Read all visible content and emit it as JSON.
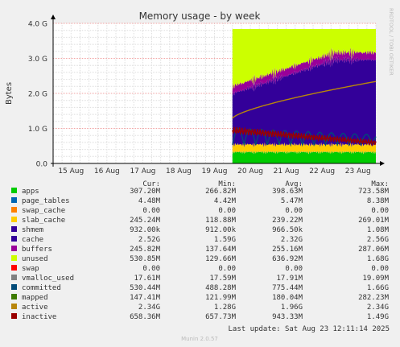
{
  "chart_data": {
    "type": "area",
    "title": "Memory usage - by week",
    "ylabel": "Bytes",
    "watermark": "RRDTOOL / TOBI OETIKER",
    "footer": "Munin 2.0.57",
    "ylim": [
      0,
      4000000000
    ],
    "yticks": [
      {
        "value": 0,
        "label": "0.0"
      },
      {
        "value": 1000000000,
        "label": "1.0 G"
      },
      {
        "value": 2000000000,
        "label": "2.0 G"
      },
      {
        "value": 3000000000,
        "label": "3.0 G"
      },
      {
        "value": 4000000000,
        "label": "4.0 G"
      }
    ],
    "xlim": [
      "2025-08-14T12:00",
      "2025-08-23T12:00"
    ],
    "xticks": [
      "15 Aug",
      "16 Aug",
      "17 Aug",
      "18 Aug",
      "19 Aug",
      "20 Aug",
      "21 Aug",
      "22 Aug",
      "23 Aug"
    ],
    "data_start": "2025-08-19T12:00",
    "columns": [
      "Cur:",
      "Min:",
      "Avg:",
      "Max:"
    ],
    "stacked_series": [
      {
        "name": "apps",
        "color": "#00cc00",
        "cur": 307200000
      },
      {
        "name": "page_tables",
        "color": "#0066b3",
        "cur": 4480000
      },
      {
        "name": "swap_cache",
        "color": "#ff8000",
        "cur": 0
      },
      {
        "name": "slab_cache",
        "color": "#ffcc00",
        "cur": 245240000
      },
      {
        "name": "cache",
        "color": "#330099",
        "cur": 2520000000
      },
      {
        "name": "buffers",
        "color": "#990099",
        "cur": 245820000
      },
      {
        "name": "unused",
        "color": "#ccff00",
        "cur": 530850000
      }
    ],
    "line_series": [
      {
        "name": "committed",
        "color": "#024b78",
        "cur": 530440000
      },
      {
        "name": "active",
        "color": "#b8860b",
        "cur": 2340000000
      },
      {
        "name": "inactive",
        "color": "#990000",
        "cur": 658360000
      }
    ],
    "legend": [
      {
        "name": "apps",
        "color": "#00cc00",
        "cur": "307.20M",
        "min": "266.82M",
        "avg": "398.63M",
        "max": "723.58M"
      },
      {
        "name": "page_tables",
        "color": "#0066b3",
        "cur": "4.48M",
        "min": "4.42M",
        "avg": "5.47M",
        "max": "8.38M"
      },
      {
        "name": "swap_cache",
        "color": "#ff8000",
        "cur": "0.00",
        "min": "0.00",
        "avg": "0.00",
        "max": "0.00"
      },
      {
        "name": "slab_cache",
        "color": "#ffcc00",
        "cur": "245.24M",
        "min": "118.88M",
        "avg": "239.22M",
        "max": "269.01M"
      },
      {
        "name": "shmem",
        "color": "#330099",
        "cur": "932.00k",
        "min": "912.00k",
        "avg": "966.50k",
        "max": "1.08M"
      },
      {
        "name": "cache",
        "color": "#330099",
        "cur": "2.52G",
        "min": "1.59G",
        "avg": "2.32G",
        "max": "2.56G"
      },
      {
        "name": "buffers",
        "color": "#990099",
        "cur": "245.82M",
        "min": "137.64M",
        "avg": "255.16M",
        "max": "287.06M"
      },
      {
        "name": "unused",
        "color": "#ccff00",
        "cur": "530.85M",
        "min": "129.66M",
        "avg": "636.92M",
        "max": "1.68G"
      },
      {
        "name": "swap",
        "color": "#ff0000",
        "cur": "0.00",
        "min": "0.00",
        "avg": "0.00",
        "max": "0.00"
      },
      {
        "name": "vmalloc_used",
        "color": "#808080",
        "cur": "17.61M",
        "min": "17.59M",
        "avg": "17.91M",
        "max": "19.09M"
      },
      {
        "name": "committed",
        "color": "#024b78",
        "cur": "530.44M",
        "min": "488.28M",
        "avg": "775.44M",
        "max": "1.66G"
      },
      {
        "name": "mapped",
        "color": "#3d7a00",
        "cur": "147.41M",
        "min": "121.99M",
        "avg": "180.04M",
        "max": "282.23M"
      },
      {
        "name": "active",
        "color": "#b8860b",
        "cur": "2.34G",
        "min": "1.28G",
        "avg": "1.96G",
        "max": "2.34G"
      },
      {
        "name": "inactive",
        "color": "#990000",
        "cur": "658.36M",
        "min": "657.73M",
        "avg": "943.33M",
        "max": "1.49G"
      }
    ],
    "last_update": "Last update: Sat Aug 23 12:11:14 2025"
  }
}
